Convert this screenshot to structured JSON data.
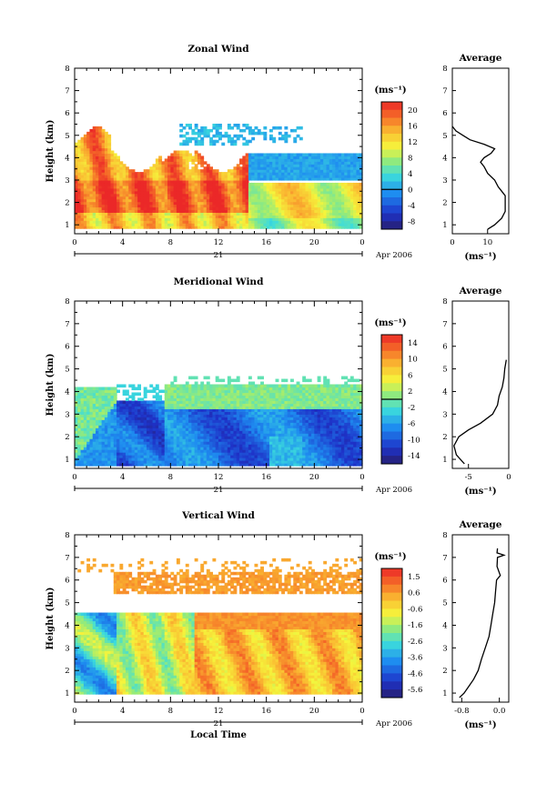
{
  "chart_data": [
    {
      "type": "heatmap",
      "title": "Zonal Wind",
      "xlabel": "",
      "ylabel": "Height (km)",
      "xticks": [
        "0",
        "4",
        "8",
        "12",
        "16",
        "20",
        "0"
      ],
      "yticks": [
        "1",
        "2",
        "3",
        "4",
        "5",
        "6",
        "7",
        "8"
      ],
      "xlim": [
        0,
        24
      ],
      "ylim": [
        0.6,
        8
      ],
      "date_day": "21",
      "date_label": "Apr 2006",
      "colorbar": {
        "unit": "(ms⁻¹)",
        "ticks": [
          "20",
          "16",
          "12",
          "8",
          "4",
          "0",
          "-4",
          "-8"
        ],
        "range": [
          -10,
          22
        ],
        "zero_line": 0
      },
      "average_profile": {
        "title": "Average",
        "xlabel": "(ms⁻¹)",
        "xticks": [
          "0",
          "10"
        ],
        "xlim": [
          0,
          16
        ],
        "height": [
          0.8,
          1.0,
          1.3,
          1.6,
          2.0,
          2.3,
          2.5,
          2.7,
          3.0,
          3.3,
          3.6,
          3.8,
          4.0,
          4.2,
          4.4,
          4.6,
          4.8,
          5.0,
          5.2,
          5.4
        ],
        "value": [
          10,
          12,
          14,
          15,
          15,
          15,
          14,
          13,
          12,
          10,
          9,
          8,
          9,
          11,
          12,
          9,
          5,
          3,
          1,
          0
        ]
      }
    },
    {
      "type": "heatmap",
      "title": "Meridional Wind",
      "xlabel": "",
      "ylabel": "Height (km)",
      "xticks": [
        "0",
        "4",
        "8",
        "12",
        "16",
        "20",
        "0"
      ],
      "yticks": [
        "1",
        "2",
        "3",
        "4",
        "5",
        "6",
        "7",
        "8"
      ],
      "xlim": [
        0,
        24
      ],
      "ylim": [
        0.6,
        8
      ],
      "date_day": "21",
      "date_label": "Apr 2006",
      "colorbar": {
        "unit": "(ms⁻¹)",
        "ticks": [
          "14",
          "10",
          "6",
          "2",
          "-2",
          "-6",
          "-10",
          "-14"
        ],
        "range": [
          -16,
          16
        ],
        "zero_line": 0
      },
      "average_profile": {
        "title": "Average",
        "xlabel": "(ms⁻¹)",
        "xticks": [
          "-5",
          "0"
        ],
        "xlim": [
          -7,
          0
        ],
        "height": [
          0.8,
          1.2,
          1.6,
          2.0,
          2.3,
          2.6,
          3.0,
          3.4,
          3.8,
          4.2,
          4.6,
          5.0,
          5.4
        ],
        "value": [
          -5.5,
          -6.5,
          -6.8,
          -6.2,
          -5.0,
          -3.5,
          -2.0,
          -1.4,
          -1.2,
          -0.8,
          -0.6,
          -0.5,
          -0.3
        ]
      }
    },
    {
      "type": "heatmap",
      "title": "Vertical Wind",
      "xlabel": "Local Time",
      "ylabel": "Height (km)",
      "xticks": [
        "0",
        "4",
        "8",
        "12",
        "16",
        "20",
        "0"
      ],
      "yticks": [
        "1",
        "2",
        "3",
        "4",
        "5",
        "6",
        "7",
        "8"
      ],
      "xlim": [
        0,
        24
      ],
      "ylim": [
        0.6,
        8
      ],
      "date_day": "21",
      "date_label": "Apr 2006",
      "colorbar": {
        "unit": "(ms⁻¹)",
        "ticks": [
          "1.5",
          "0.6",
          "-0.6",
          "-1.6",
          "-2.6",
          "-3.6",
          "-4.6",
          "-5.6"
        ],
        "range": [
          -6.2,
          2.0
        ],
        "zero_line": null
      },
      "average_profile": {
        "title": "Average",
        "xlabel": "(ms⁻¹)",
        "xticks": [
          "-0.8",
          "0.0"
        ],
        "xlim": [
          -1.0,
          0.2
        ],
        "height": [
          0.8,
          1.0,
          1.3,
          1.6,
          2.0,
          2.5,
          3.0,
          3.5,
          4.0,
          4.5,
          5.0,
          5.5,
          6.0,
          6.2,
          6.6,
          7.0,
          7.1,
          7.2,
          7.4
        ],
        "value": [
          -0.85,
          -0.75,
          -0.65,
          -0.55,
          -0.45,
          -0.38,
          -0.3,
          -0.22,
          -0.18,
          -0.14,
          -0.1,
          -0.08,
          -0.06,
          0.02,
          -0.05,
          -0.04,
          0.1,
          -0.05,
          -0.04
        ]
      }
    }
  ]
}
